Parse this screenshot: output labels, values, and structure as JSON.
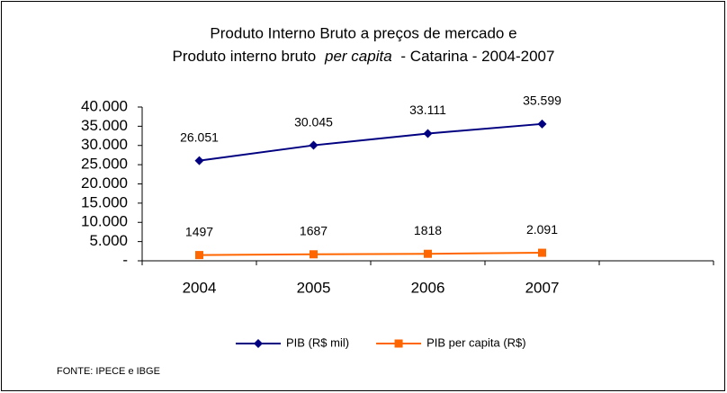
{
  "chart_data": {
    "type": "line",
    "title": {
      "line1": "Produto Interno Bruto a preços de mercado e",
      "line2": [
        "Produto interno bruto",
        "per capita",
        "- Catarina - 2004-2007"
      ]
    },
    "categories": [
      "2004",
      "2005",
      "2006",
      "2007",
      null
    ],
    "series": [
      {
        "name": "PIB (R$ mil)",
        "color": "#000080",
        "marker": "diamond",
        "values": [
          26051,
          30045,
          33111,
          35599,
          null
        ],
        "value_labels": [
          "26.051",
          "30.045",
          "33.111",
          "35.599",
          null
        ]
      },
      {
        "name": "PIB per capita (R$)",
        "color": "#ff6600",
        "marker": "square",
        "values": [
          1497,
          1687,
          1818,
          2091,
          null
        ],
        "value_labels": [
          "1497",
          "1687",
          "1818",
          "2.091",
          null
        ]
      }
    ],
    "ylim": [
      0,
      40000
    ],
    "yticks": [
      {
        "value": 0,
        "label": "-"
      },
      {
        "value": 5000,
        "label": "5.000"
      },
      {
        "value": 10000,
        "label": "10.000"
      },
      {
        "value": 15000,
        "label": "15.000"
      },
      {
        "value": 20000,
        "label": "20.000"
      },
      {
        "value": 25000,
        "label": "25.000"
      },
      {
        "value": 30000,
        "label": "30.000"
      },
      {
        "value": 35000,
        "label": "35.000"
      },
      {
        "value": 40000,
        "label": "40.000"
      }
    ],
    "grid": false,
    "legend": "bottom",
    "source": "FONTE: IPECE e IBGE"
  }
}
